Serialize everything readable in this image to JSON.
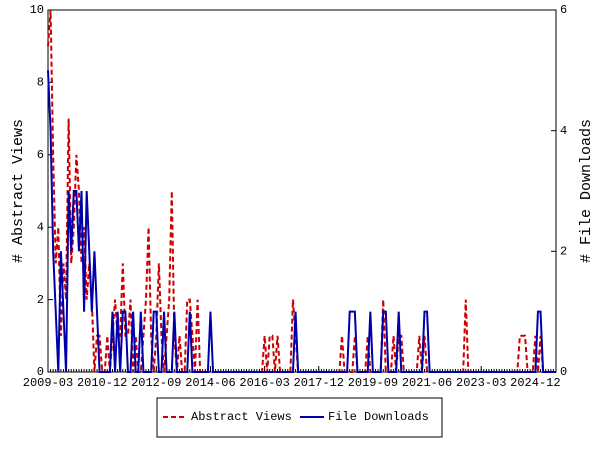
{
  "chart_data": {
    "type": "line",
    "x": [
      "2009-03",
      "2009-04",
      "2009-05",
      "2009-06",
      "2009-07",
      "2009-08",
      "2009-09",
      "2009-10",
      "2009-11",
      "2009-12",
      "2010-01",
      "2010-02",
      "2010-03",
      "2010-04",
      "2010-05",
      "2010-06",
      "2010-07",
      "2010-08",
      "2010-09",
      "2010-10",
      "2010-11",
      "2010-12",
      "2011-01",
      "2011-02",
      "2011-03",
      "2011-04",
      "2011-05",
      "2011-06",
      "2011-07",
      "2011-08",
      "2011-09",
      "2011-10",
      "2011-11",
      "2011-12",
      "2012-01",
      "2012-02",
      "2012-03",
      "2012-04",
      "2012-05",
      "2012-06",
      "2012-07",
      "2012-08",
      "2012-09",
      "2012-10",
      "2012-11",
      "2012-12",
      "2013-01",
      "2013-02",
      "2013-03",
      "2013-04",
      "2013-05",
      "2013-06",
      "2013-07",
      "2013-08",
      "2013-09",
      "2013-10",
      "2013-11",
      "2013-12",
      "2014-01",
      "2014-02",
      "2014-03",
      "2014-04",
      "2014-05",
      "2014-06",
      "2014-07",
      "2014-08",
      "2014-09",
      "2014-10",
      "2014-11",
      "2014-12",
      "2015-01",
      "2015-02",
      "2015-03",
      "2015-04",
      "2015-05",
      "2015-06",
      "2015-07",
      "2015-08",
      "2015-09",
      "2015-10",
      "2015-11",
      "2015-12",
      "2016-01",
      "2016-02",
      "2016-03",
      "2016-04",
      "2016-05",
      "2016-06",
      "2016-07",
      "2016-08",
      "2016-09",
      "2016-10",
      "2016-11",
      "2016-12",
      "2017-01",
      "2017-02",
      "2017-03",
      "2017-04",
      "2017-05",
      "2017-06",
      "2017-07",
      "2017-08",
      "2017-09",
      "2017-10",
      "2017-11",
      "2017-12",
      "2018-01",
      "2018-02",
      "2018-03",
      "2018-04",
      "2018-05",
      "2018-06",
      "2018-07",
      "2018-08",
      "2018-09",
      "2018-10",
      "2018-11",
      "2018-12",
      "2019-01",
      "2019-02",
      "2019-03",
      "2019-04",
      "2019-05",
      "2019-06",
      "2019-07",
      "2019-08",
      "2019-09",
      "2019-10",
      "2019-11",
      "2019-12",
      "2020-01",
      "2020-02",
      "2020-03",
      "2020-04",
      "2020-05",
      "2020-06",
      "2020-07",
      "2020-08",
      "2020-09",
      "2020-10",
      "2020-11",
      "2020-12",
      "2021-01",
      "2021-02",
      "2021-03",
      "2021-04",
      "2021-05",
      "2021-06",
      "2021-07",
      "2021-08",
      "2021-09",
      "2021-10",
      "2021-11",
      "2021-12",
      "2022-01",
      "2022-02",
      "2022-03",
      "2022-04",
      "2022-05",
      "2022-06",
      "2022-07",
      "2022-08",
      "2022-09",
      "2022-10",
      "2022-11",
      "2022-12",
      "2023-01",
      "2023-02",
      "2023-03",
      "2023-04",
      "2023-05",
      "2023-06",
      "2023-07",
      "2023-08",
      "2023-09",
      "2023-10",
      "2023-11",
      "2023-12",
      "2024-01",
      "2024-02",
      "2024-03",
      "2024-04",
      "2024-05",
      "2024-06",
      "2024-07",
      "2024-08",
      "2024-09",
      "2024-10",
      "2024-11",
      "2024-12",
      "2025-01",
      "2025-02",
      "2025-03",
      "2025-04",
      "2025-05",
      "2025-06",
      "2025-07",
      "2025-08"
    ],
    "xticks": [
      "2009-03",
      "2010-12",
      "2012-09",
      "2014-06",
      "2016-03",
      "2017-12",
      "2019-09",
      "2021-06",
      "2023-03",
      "2024-12"
    ],
    "ylabel": "# Abstract Views",
    "y2label": "# File Downloads",
    "ylim": [
      0,
      10
    ],
    "yticks": [
      0,
      2,
      4,
      6,
      8,
      10
    ],
    "y2lim": [
      0,
      6
    ],
    "y2ticks": [
      0,
      2,
      4,
      6
    ],
    "series": [
      {
        "name": "Abstract Views",
        "color": "#cc0000",
        "dashed": true,
        "axis": "y",
        "values": [
          9,
          10,
          6,
          3,
          4,
          1,
          3,
          2,
          7,
          3,
          4,
          6,
          5,
          3,
          4,
          2,
          3,
          2,
          0,
          1,
          1,
          0,
          0,
          1,
          0,
          1,
          2,
          1,
          1,
          3,
          1,
          1,
          2,
          0,
          1,
          0,
          0,
          1,
          2,
          4,
          1,
          0,
          1,
          3,
          1,
          0,
          1,
          2,
          5,
          1,
          0,
          1,
          0,
          0,
          2,
          2,
          1,
          0,
          2,
          0,
          0,
          0,
          0,
          0,
          0,
          0,
          0,
          0,
          0,
          0,
          0,
          0,
          0,
          0,
          0,
          0,
          0,
          0,
          0,
          0,
          0,
          0,
          0,
          0,
          1,
          0,
          1,
          1,
          0,
          1,
          0,
          0,
          0,
          0,
          0,
          2,
          1,
          0,
          0,
          0,
          0,
          0,
          0,
          0,
          0,
          0,
          0,
          0,
          0,
          0,
          0,
          0,
          0,
          0,
          1,
          0,
          0,
          0,
          0,
          1,
          0,
          0,
          0,
          0,
          1,
          0,
          0,
          0,
          0,
          0,
          2,
          0,
          0,
          0,
          1,
          0,
          1,
          1,
          0,
          0,
          0,
          0,
          0,
          0,
          1,
          0,
          1,
          0,
          0,
          0,
          0,
          0,
          0,
          0,
          0,
          0,
          0,
          0,
          0,
          0,
          0,
          0,
          2,
          0,
          0,
          0,
          0,
          0,
          0,
          0,
          0,
          0,
          0,
          0,
          0,
          0,
          0,
          0,
          0,
          0,
          0,
          0,
          0,
          1,
          1,
          1,
          0,
          0,
          0,
          1,
          0,
          1,
          0,
          0,
          0,
          0,
          0,
          0
        ]
      },
      {
        "name": "File Downloads",
        "color": "#0000aa",
        "dashed": false,
        "axis": "y2",
        "values": [
          5,
          4,
          2,
          1,
          0,
          2,
          1,
          0,
          3,
          2,
          3,
          3,
          2,
          3,
          1,
          3,
          2,
          1,
          2,
          1,
          0,
          0,
          0,
          0,
          0,
          1,
          0,
          1,
          0,
          1,
          1,
          0,
          0,
          1,
          0,
          0,
          1,
          0,
          0,
          0,
          0,
          1,
          1,
          0,
          0,
          1,
          0,
          0,
          0,
          1,
          0,
          0,
          0,
          0,
          0,
          1,
          0,
          0,
          0,
          0,
          0,
          0,
          0,
          1,
          0,
          0,
          0,
          0,
          0,
          0,
          0,
          0,
          0,
          0,
          0,
          0,
          0,
          0,
          0,
          0,
          0,
          0,
          0,
          0,
          0,
          0,
          0,
          0,
          0,
          0,
          0,
          0,
          0,
          0,
          0,
          0,
          1,
          0,
          0,
          0,
          0,
          0,
          0,
          0,
          0,
          0,
          0,
          0,
          0,
          0,
          0,
          0,
          0,
          0,
          0,
          0,
          0,
          1,
          1,
          1,
          0,
          0,
          0,
          0,
          0,
          1,
          0,
          0,
          0,
          0,
          1,
          1,
          0,
          0,
          0,
          0,
          1,
          0,
          0,
          0,
          0,
          0,
          0,
          0,
          0,
          0,
          1,
          1,
          0,
          0,
          0,
          0,
          0,
          0,
          0,
          0,
          0,
          0,
          0,
          0,
          0,
          0,
          0,
          0,
          0,
          0,
          0,
          0,
          0,
          0,
          0,
          0,
          0,
          0,
          0,
          0,
          0,
          0,
          0,
          0,
          0,
          0,
          0,
          0,
          0,
          0,
          0,
          0,
          0,
          0,
          1,
          1,
          0,
          0,
          0,
          0,
          0,
          0
        ]
      }
    ]
  }
}
